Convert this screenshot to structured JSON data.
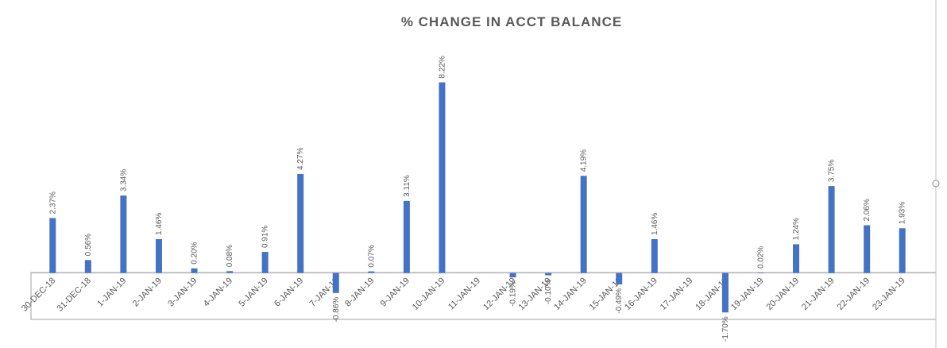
{
  "chart_data": {
    "type": "bar",
    "title": "% CHANGE IN ACCT BALANCE",
    "categories": [
      "30-DEC-18",
      "31-DEC-18",
      "1-JAN-19",
      "2-JAN-19",
      "3-JAN-19",
      "4-JAN-19",
      "5-JAN-19",
      "6-JAN-19",
      "7-JAN-19",
      "8-JAN-19",
      "9-JAN-19",
      "10-JAN-19",
      "11-JAN-19",
      "12-JAN-19",
      "13-JAN-19",
      "14-JAN-19",
      "15-JAN-19",
      "16-JAN-19",
      "17-JAN-19",
      "18-JAN-19",
      "19-JAN-19",
      "20-JAN-19",
      "21-JAN-19",
      "22-JAN-19",
      "23-JAN-19"
    ],
    "values": [
      2.37,
      0.56,
      3.34,
      1.46,
      0.2,
      0.08,
      0.91,
      4.27,
      -0.86,
      0.07,
      3.11,
      8.22,
      null,
      -0.19,
      -0.1,
      4.19,
      -0.49,
      1.46,
      null,
      -1.7,
      0.02,
      1.24,
      3.75,
      2.06,
      1.93
    ],
    "value_labels": [
      "2.37%",
      "0.56%",
      "3.34%",
      "1.46%",
      "0.20%",
      "0.08%",
      "0.91%",
      "4.27%",
      "-0.86%",
      "0.07%",
      "3.11%",
      "8.22%",
      null,
      "-0.19%",
      "-0.10%",
      "4.19%",
      "-0.49%",
      "1.46%",
      null,
      "-1.70%",
      "0.02%",
      "1.24%",
      "3.75%",
      "2.06%",
      "1.93%"
    ],
    "color": "#4472c4",
    "ylim": [
      -2,
      10.4
    ]
  }
}
